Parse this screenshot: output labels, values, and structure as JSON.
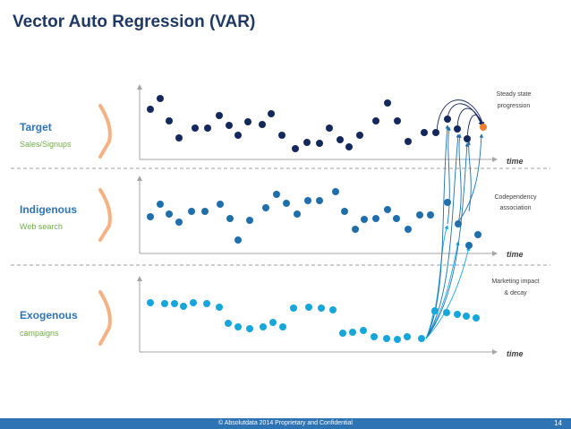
{
  "title": "Vector Auto Regression (VAR)",
  "rows": [
    {
      "label": "Target",
      "sublabel": "Sales/Signups"
    },
    {
      "label": "Indigenous",
      "sublabel": "Web search"
    },
    {
      "label": "Exogenous",
      "sublabel": "campaigns"
    }
  ],
  "axis_label": "time",
  "annotations": {
    "steady": [
      "Steady state",
      "progression"
    ],
    "codep": [
      "Codependency",
      "association"
    ],
    "marketing": [
      "Marketing impact",
      "& decay"
    ]
  },
  "footer": "© Absolutdata 2014 Proprietary and Confidential",
  "page_number": "14",
  "colors": {
    "title": "#1f3864",
    "label": "#2e74b5",
    "sublabel": "#70ad47",
    "target": "#14285c",
    "indigenous": "#1f6fad",
    "exogenous": "#17a6dc",
    "highlight": "#ed7d31",
    "bracket": "#f4b183"
  }
}
